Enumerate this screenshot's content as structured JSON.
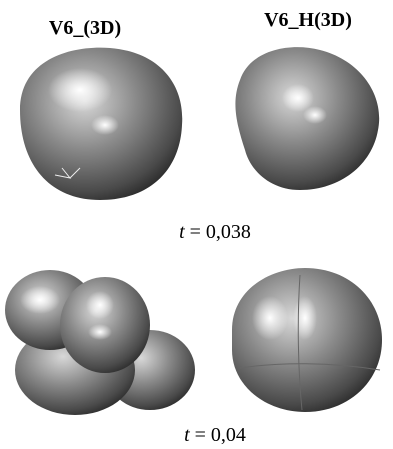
{
  "labels": {
    "left": "V6_(3D)",
    "right": "V6_H(3D)"
  },
  "captions": [
    {
      "symbol": "t",
      "text": "= 0,038"
    },
    {
      "symbol": "t",
      "text": "= 0,04"
    }
  ]
}
